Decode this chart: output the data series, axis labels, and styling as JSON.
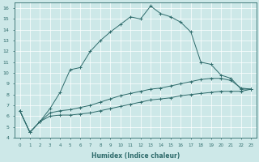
{
  "xlabel": "Humidex (Indice chaleur)",
  "xlim": [
    -0.5,
    23.5
  ],
  "ylim": [
    4,
    16.5
  ],
  "xticks": [
    0,
    1,
    2,
    3,
    4,
    5,
    6,
    7,
    8,
    9,
    10,
    11,
    12,
    13,
    14,
    15,
    16,
    17,
    18,
    19,
    20,
    21,
    22,
    23
  ],
  "yticks": [
    4,
    5,
    6,
    7,
    8,
    9,
    10,
    11,
    12,
    13,
    14,
    15,
    16
  ],
  "bg_color": "#cde8e8",
  "line_color": "#2e6b6b",
  "series": {
    "max": [
      6.5,
      4.5,
      5.5,
      6.7,
      8.2,
      10.3,
      10.5,
      12.0,
      13.0,
      13.8,
      14.5,
      15.2,
      15.0,
      16.2,
      15.5,
      15.2,
      14.7,
      13.8,
      11.0,
      10.8,
      9.8,
      9.5,
      8.5,
      8.5
    ],
    "mid": [
      6.5,
      4.5,
      5.5,
      6.3,
      6.5,
      6.6,
      6.8,
      7.0,
      7.3,
      7.6,
      7.9,
      8.1,
      8.3,
      8.5,
      8.6,
      8.8,
      9.0,
      9.2,
      9.4,
      9.5,
      9.5,
      9.3,
      8.6,
      8.5
    ],
    "min": [
      6.5,
      4.5,
      5.5,
      6.0,
      6.1,
      6.1,
      6.2,
      6.3,
      6.5,
      6.7,
      6.9,
      7.1,
      7.3,
      7.5,
      7.6,
      7.7,
      7.9,
      8.0,
      8.1,
      8.2,
      8.3,
      8.3,
      8.3,
      8.5
    ]
  }
}
